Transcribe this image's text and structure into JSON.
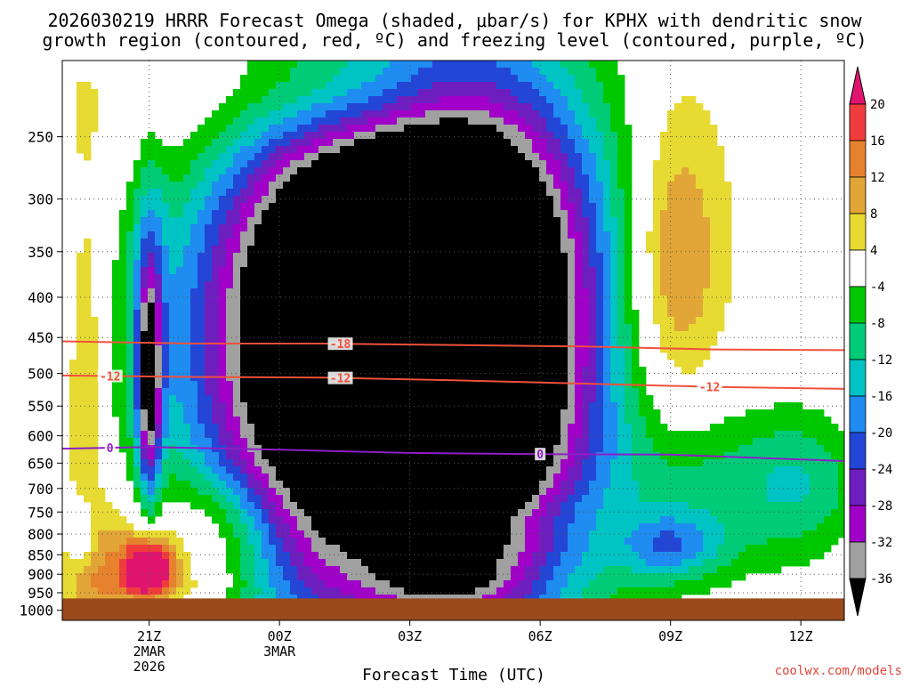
{
  "title": {
    "line1": "2026030219 HRRR Forecast Omega (shaded, μbar/s) for KPHX with dendritic snow",
    "line2": "growth region (contoured, red, ºC) and freezing level (contoured, purple, ºC)"
  },
  "footer": {
    "xlabel": "Forecast Time (UTC)",
    "credit": "coolwx.com/models"
  },
  "chart_data": {
    "type": "heatmap",
    "model": "HRRR",
    "station": "KPHX",
    "init": "2026030219",
    "x_axis": {
      "label": "Forecast Time (UTC)",
      "ticks": [
        {
          "label": "21Z",
          "sub1": "2MAR",
          "sub2": "2026",
          "hour": 2
        },
        {
          "label": "00Z",
          "sub1": "3MAR",
          "sub2": "",
          "hour": 5
        },
        {
          "label": "03Z",
          "sub1": "",
          "sub2": "",
          "hour": 8
        },
        {
          "label": "06Z",
          "sub1": "",
          "sub2": "",
          "hour": 11
        },
        {
          "label": "09Z",
          "sub1": "",
          "sub2": "",
          "hour": 14
        },
        {
          "label": "12Z",
          "sub1": "",
          "sub2": "",
          "hour": 17
        }
      ],
      "range_hours": [
        0,
        18
      ]
    },
    "y_axis": {
      "label": "",
      "unit": "hPa",
      "ticks": [
        250,
        300,
        350,
        400,
        450,
        500,
        550,
        600,
        650,
        700,
        750,
        800,
        850,
        900,
        950,
        1000
      ],
      "range": [
        200,
        1030
      ],
      "scale": "log"
    },
    "grid": true,
    "ground_color": "#9b4a1c",
    "colorbar": {
      "placement": "right",
      "tick_labels": [
        "20",
        "16",
        "12",
        "8",
        "4",
        "-4",
        "-8",
        "-12",
        "-16",
        "-20",
        "-24",
        "-28",
        "-32",
        "-36"
      ],
      "bins": [
        {
          "range": [
            20,
            100
          ],
          "color": "#e0146e"
        },
        {
          "range": [
            16,
            20
          ],
          "color": "#f03c3c"
        },
        {
          "range": [
            12,
            16
          ],
          "color": "#e6822d"
        },
        {
          "range": [
            8,
            12
          ],
          "color": "#e1a637"
        },
        {
          "range": [
            4,
            8
          ],
          "color": "#e7da32"
        },
        {
          "range": [
            -4,
            4
          ],
          "color": "#ffffff"
        },
        {
          "range": [
            -8,
            -4
          ],
          "color": "#00c800"
        },
        {
          "range": [
            -12,
            -8
          ],
          "color": "#00cc77"
        },
        {
          "range": [
            -16,
            -12
          ],
          "color": "#00c3c3"
        },
        {
          "range": [
            -20,
            -16
          ],
          "color": "#1e8cf0"
        },
        {
          "range": [
            -24,
            -20
          ],
          "color": "#2346d7"
        },
        {
          "range": [
            -28,
            -24
          ],
          "color": "#6e1ebe"
        },
        {
          "range": [
            -32,
            -28
          ],
          "color": "#a000c8"
        },
        {
          "range": [
            -36,
            -32
          ],
          "color": "#a0a0a0"
        },
        {
          "range": [
            -100,
            -36
          ],
          "color": "#000000"
        }
      ]
    },
    "omega_features": [
      {
        "hour": 8.5,
        "p": 430,
        "value": -45,
        "sx": 2.6,
        "sy": 0.55
      },
      {
        "hour": 7.2,
        "p": 510,
        "value": -25,
        "sx": 3.2,
        "sy": 0.6
      },
      {
        "hour": 5.3,
        "p": 470,
        "value": -14,
        "sx": 1.7,
        "sy": 0.45
      },
      {
        "hour": 9.7,
        "p": 520,
        "value": -18,
        "sx": 1.3,
        "sy": 0.45
      },
      {
        "hour": 8.0,
        "p": 320,
        "value": -9,
        "sx": 3.0,
        "sy": 0.28
      },
      {
        "hour": 2.0,
        "p": 520,
        "value": -27,
        "sx": 0.18,
        "sy": 0.22
      },
      {
        "hour": 2.0,
        "p": 410,
        "value": -12,
        "sx": 0.3,
        "sy": 0.35
      },
      {
        "hour": 0.55,
        "p": 530,
        "value": 10,
        "sx": 0.28,
        "sy": 0.4
      },
      {
        "hour": 0.9,
        "p": 850,
        "value": 9,
        "sx": 0.6,
        "sy": 0.12
      },
      {
        "hour": 0.5,
        "p": 800,
        "value": -12,
        "sx": 0.22,
        "sy": 0.08
      },
      {
        "hour": 2.0,
        "p": 880,
        "value": 30,
        "sx": 0.4,
        "sy": 0.06
      },
      {
        "hour": 3.8,
        "p": 790,
        "value": 9,
        "sx": 1.0,
        "sy": 0.12
      },
      {
        "hour": 2.8,
        "p": 850,
        "value": 6,
        "sx": 1.3,
        "sy": 0.18
      },
      {
        "hour": 7.0,
        "p": 220,
        "value": 11,
        "sx": 1.8,
        "sy": 0.12
      },
      {
        "hour": 3.5,
        "p": 230,
        "value": 6,
        "sx": 2.8,
        "sy": 0.2
      },
      {
        "hour": 14.0,
        "p": 370,
        "value": 12,
        "sx": 0.8,
        "sy": 0.3
      },
      {
        "hour": 14.2,
        "p": 330,
        "value": 5,
        "sx": 1.0,
        "sy": 0.38
      },
      {
        "hour": 10.0,
        "p": 750,
        "value": 6,
        "sx": 1.4,
        "sy": 0.06
      },
      {
        "hour": 15.5,
        "p": 710,
        "value": -10,
        "sx": 1.8,
        "sy": 0.18
      },
      {
        "hour": 14.0,
        "p": 830,
        "value": -14,
        "sx": 0.8,
        "sy": 0.07
      },
      {
        "hour": 17.2,
        "p": 680,
        "value": -7,
        "sx": 0.9,
        "sy": 0.15
      },
      {
        "hour": 8.8,
        "p": 920,
        "value": -7,
        "sx": 1.0,
        "sy": 0.035
      },
      {
        "hour": 2.0,
        "p": 930,
        "value": 5,
        "sx": 1.5,
        "sy": 0.04
      }
    ],
    "omega_background": 1.5,
    "contours": [
      {
        "name": "-18",
        "label": "-18",
        "color": "#f0503c",
        "points": [
          [
            0,
            455
          ],
          [
            3,
            458
          ],
          [
            6,
            458
          ],
          [
            9,
            460
          ],
          [
            12,
            462
          ],
          [
            15,
            466
          ],
          [
            18,
            467
          ]
        ],
        "label_hour": 6.4
      },
      {
        "name": "-12",
        "label": "-12",
        "color": "#f0503c",
        "points": [
          [
            0,
            503
          ],
          [
            3,
            505
          ],
          [
            6,
            506
          ],
          [
            9,
            510
          ],
          [
            12,
            515
          ],
          [
            15,
            520
          ],
          [
            18,
            523
          ]
        ],
        "label_hours": [
          1.1,
          6.4,
          14.9
        ]
      },
      {
        "name": "0",
        "label": "0",
        "color": "#8c1ec8",
        "points": [
          [
            0,
            623
          ],
          [
            2,
            620
          ],
          [
            5,
            625
          ],
          [
            8,
            631
          ],
          [
            11,
            633
          ],
          [
            14,
            634
          ],
          [
            18,
            646
          ]
        ],
        "label_hours": [
          1.1,
          11.0
        ]
      }
    ]
  }
}
